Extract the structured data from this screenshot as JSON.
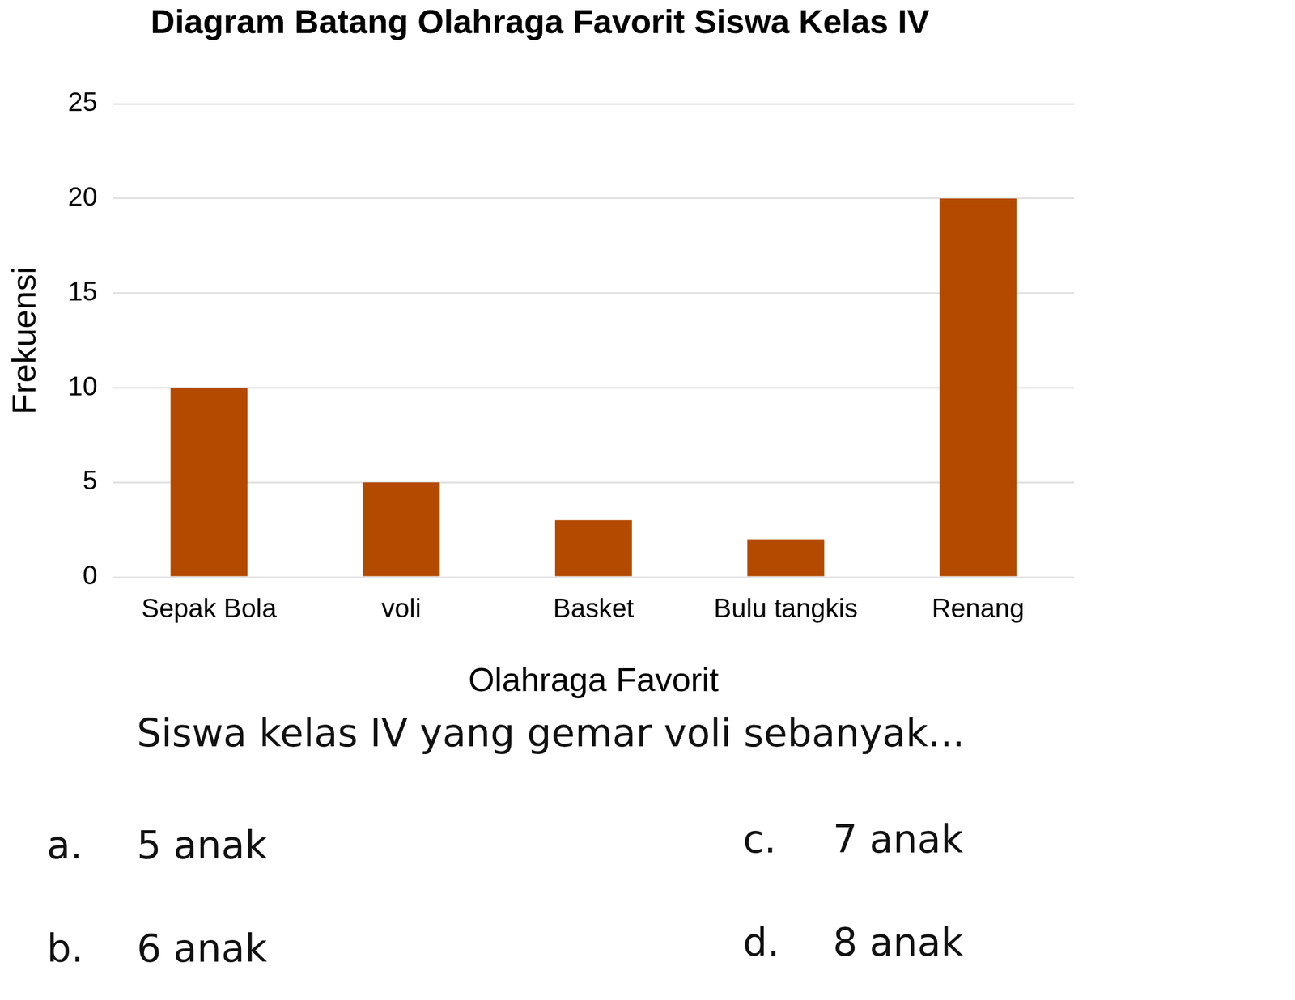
{
  "chart_data": {
    "type": "bar",
    "title": "Diagram Batang Olahraga Favorit Siswa Kelas IV",
    "x_label": "Olahraga Favorit",
    "y_label": "Frekuensi",
    "categories": [
      "Sepak Bola",
      "voli",
      "Basket",
      "Bulu tangkis",
      "Renang"
    ],
    "values": [
      10,
      5,
      3,
      2,
      20
    ],
    "color": "#b34a00",
    "ylim": [
      0,
      25
    ],
    "yticks": [
      0,
      5,
      10,
      15,
      20,
      25
    ],
    "grid": true,
    "data_labels": false
  },
  "question": {
    "text": "Siswa kelas IV yang gemar voli sebanyak...",
    "options": [
      {
        "label": "a.",
        "text": "5 anak"
      },
      {
        "label": "b.",
        "text": "6 anak"
      },
      {
        "label": "c.",
        "text": "7 anak"
      },
      {
        "label": "d.",
        "text": "8 anak"
      }
    ]
  }
}
